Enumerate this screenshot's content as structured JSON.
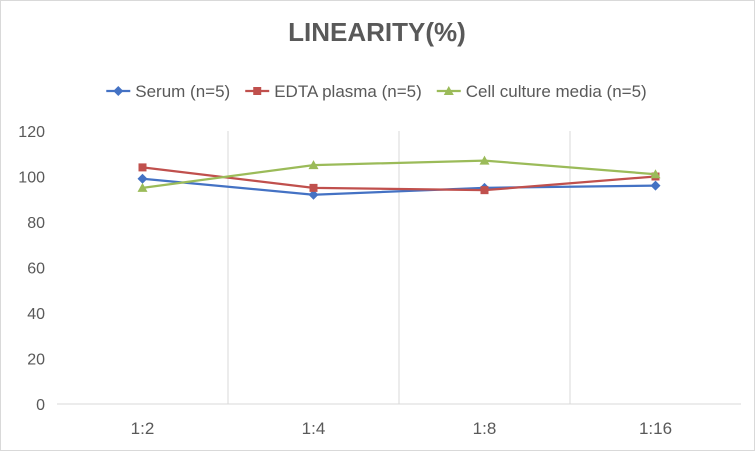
{
  "chart_data": {
    "type": "line",
    "title": "LINEARITY(%)",
    "xlabel": "",
    "ylabel": "",
    "categories": [
      "1:2",
      "1:4",
      "1:8",
      "1:16"
    ],
    "ylim": [
      0,
      120
    ],
    "yticks": [
      0,
      20,
      40,
      60,
      80,
      100,
      120
    ],
    "grid": "vertical category lines",
    "legend_position": "top",
    "series": [
      {
        "name": "Serum (n=5)",
        "color": "#4472c4",
        "marker": "diamond",
        "values": [
          99,
          92,
          95,
          96
        ]
      },
      {
        "name": "EDTA plasma (n=5)",
        "color": "#c0504d",
        "marker": "square",
        "values": [
          104,
          95,
          94,
          100
        ]
      },
      {
        "name": "Cell culture media (n=5)",
        "color": "#9bbb59",
        "marker": "triangle",
        "values": [
          95,
          105,
          107,
          101
        ]
      }
    ]
  }
}
